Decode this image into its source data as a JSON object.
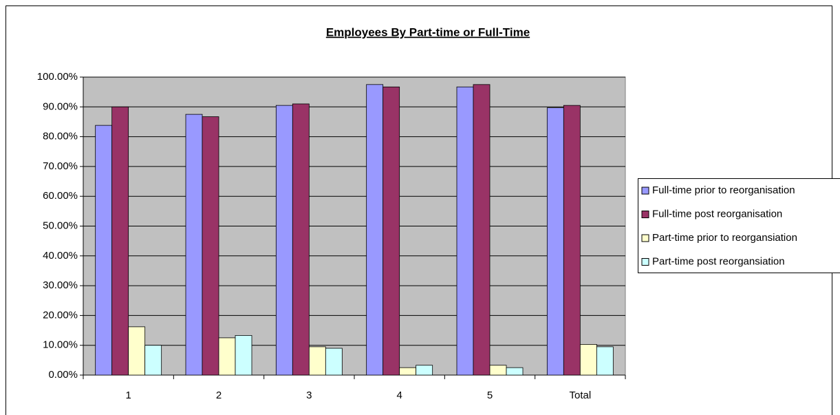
{
  "chart_data": {
    "type": "bar",
    "title": "Employees By Part-time or Full-Time",
    "categories": [
      "1",
      "2",
      "3",
      "4",
      "5",
      "Total"
    ],
    "series": [
      {
        "name": "Full-time prior to reorganisation",
        "color": "#9999ff",
        "values": [
          83.8,
          87.5,
          90.5,
          97.5,
          96.7,
          89.7
        ]
      },
      {
        "name": "Full-time post reorganisation",
        "color": "#993366",
        "values": [
          90.0,
          86.7,
          91.0,
          96.7,
          97.5,
          90.5
        ]
      },
      {
        "name": "Part-time prior to reorgansiation",
        "color": "#ffffcc",
        "values": [
          16.2,
          12.5,
          9.5,
          2.5,
          3.3,
          10.3
        ]
      },
      {
        "name": "Part-time post reorgansiation",
        "color": "#ccffff",
        "values": [
          10.0,
          13.3,
          9.0,
          3.3,
          2.5,
          9.5
        ]
      }
    ],
    "ylim": [
      0,
      100
    ],
    "yticks": [
      {
        "value": 0,
        "label": "0.00%"
      },
      {
        "value": 10,
        "label": "10.00%"
      },
      {
        "value": 20,
        "label": "20.00%"
      },
      {
        "value": 30,
        "label": "30.00%"
      },
      {
        "value": 40,
        "label": "40.00%"
      },
      {
        "value": 50,
        "label": "50.00%"
      },
      {
        "value": 60,
        "label": "60.00%"
      },
      {
        "value": 70,
        "label": "70.00%"
      },
      {
        "value": 80,
        "label": "80.00%"
      },
      {
        "value": 90,
        "label": "90.00%"
      },
      {
        "value": 100,
        "label": "100.00%"
      }
    ],
    "grid": true,
    "legend": "right"
  }
}
